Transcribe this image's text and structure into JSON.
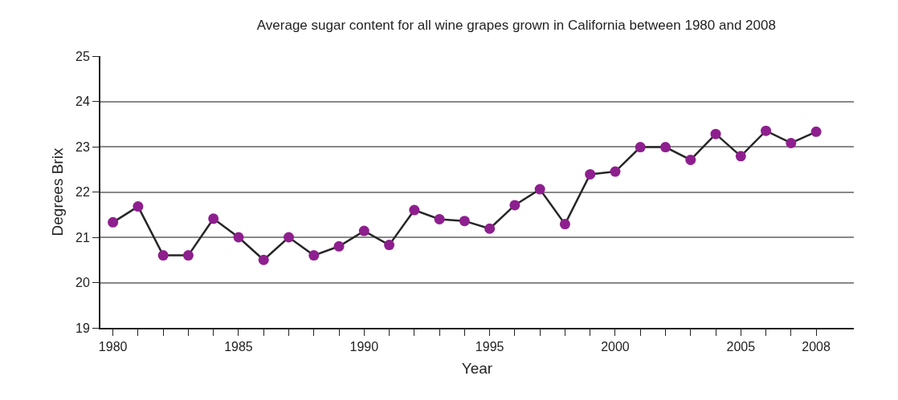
{
  "chart_data": {
    "type": "line",
    "title": "Average sugar content for all wine grapes grown in California between 1980 and 2008",
    "xlabel": "Year",
    "ylabel": "Degrees Brix",
    "x": [
      1980,
      1981,
      1982,
      1983,
      1984,
      1985,
      1986,
      1987,
      1988,
      1989,
      1990,
      1991,
      1992,
      1993,
      1994,
      1995,
      1996,
      1997,
      1998,
      1999,
      2000,
      2001,
      2002,
      2003,
      2004,
      2005,
      2006,
      2007,
      2008
    ],
    "series": [
      {
        "color": "#8e1f8e",
        "values": [
          21.33,
          21.68,
          20.6,
          20.6,
          21.41,
          21.0,
          20.5,
          21.0,
          20.6,
          20.8,
          21.14,
          20.83,
          21.6,
          21.4,
          21.36,
          21.19,
          21.71,
          22.06,
          21.29,
          22.39,
          22.45,
          22.99,
          22.99,
          22.71,
          23.28,
          22.79,
          23.35,
          23.08,
          23.33
        ]
      }
    ],
    "xlim": [
      1979.5,
      2009.5
    ],
    "ylim": [
      19,
      25
    ],
    "xticks": [
      1980,
      {
        "value": 1981,
        "label": null
      },
      {
        "value": 1982,
        "label": null
      },
      {
        "value": 1983,
        "label": null
      },
      {
        "value": 1984,
        "label": null
      },
      1985,
      {
        "value": 1986,
        "label": null
      },
      {
        "value": 1987,
        "label": null
      },
      {
        "value": 1988,
        "label": null
      },
      {
        "value": 1989,
        "label": null
      },
      1990,
      {
        "value": 1991,
        "label": null
      },
      {
        "value": 1992,
        "label": null
      },
      {
        "value": 1993,
        "label": null
      },
      {
        "value": 1994,
        "label": null
      },
      1995,
      {
        "value": 1996,
        "label": null
      },
      {
        "value": 1997,
        "label": null
      },
      {
        "value": 1998,
        "label": null
      },
      {
        "value": 1999,
        "label": null
      },
      2000,
      {
        "value": 2001,
        "label": null
      },
      {
        "value": 2002,
        "label": null
      },
      {
        "value": 2003,
        "label": null
      },
      {
        "value": 2004,
        "label": null
      },
      2005,
      {
        "value": 2006,
        "label": null
      },
      {
        "value": 2007,
        "label": null
      },
      2008
    ],
    "yticks": [
      19,
      20,
      21,
      22,
      23,
      24,
      25
    ],
    "grid": "y",
    "marker": "circle",
    "line_style": "solid"
  }
}
